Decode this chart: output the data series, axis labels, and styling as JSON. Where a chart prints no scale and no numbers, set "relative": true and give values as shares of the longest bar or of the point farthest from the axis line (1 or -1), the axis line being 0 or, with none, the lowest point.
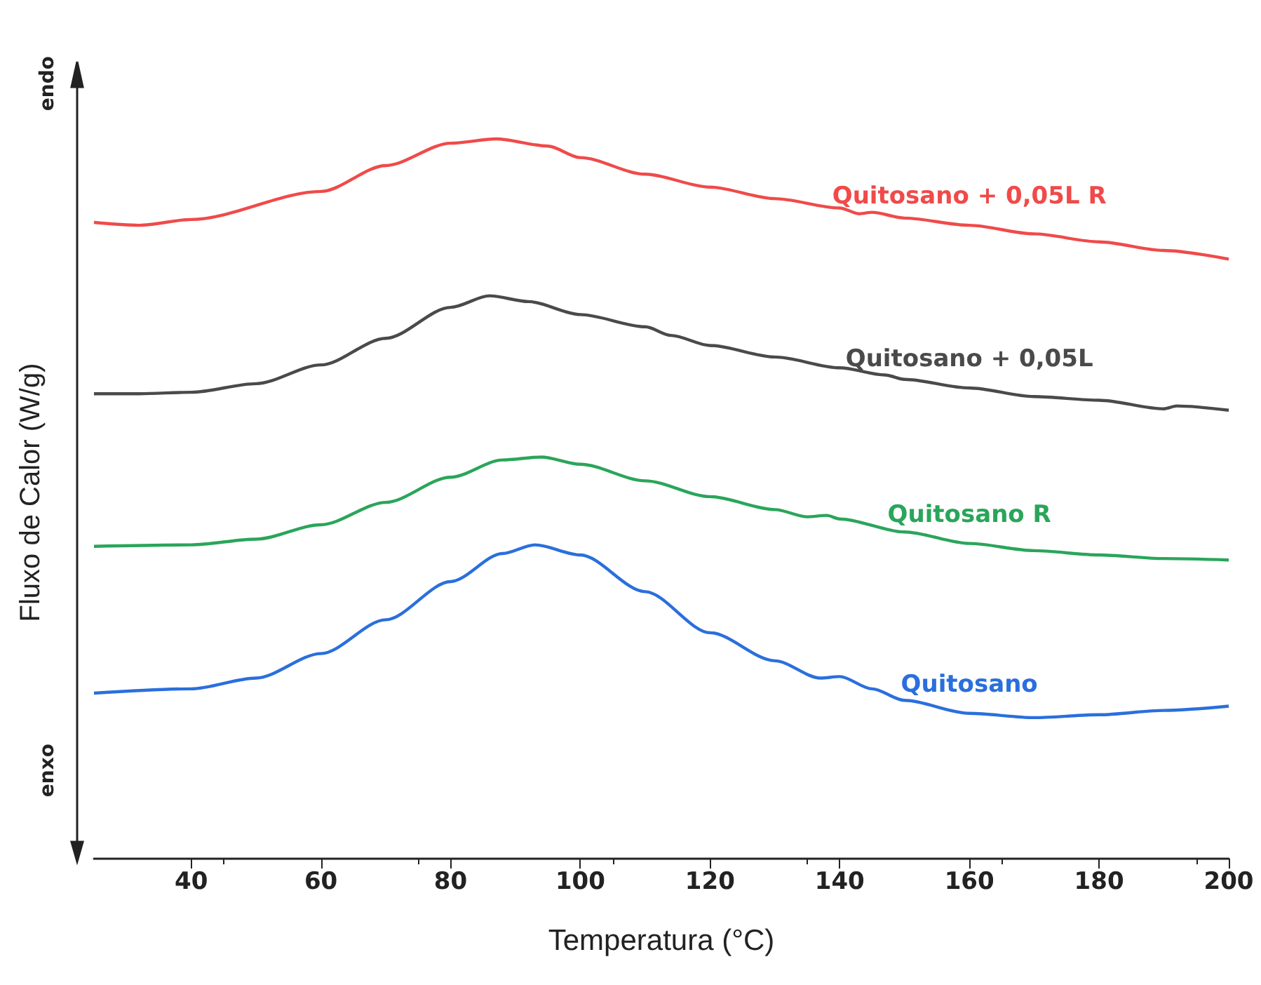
{
  "chart_data": {
    "type": "line",
    "relative": true,
    "xlabel": "Temperatura (°C)",
    "ylabel": "Fluxo de Calor (W/g)",
    "xlim": [
      25,
      200
    ],
    "xticks": [
      40,
      60,
      80,
      100,
      120,
      140,
      160,
      180,
      200
    ],
    "annotations": [
      "endo",
      "enxo"
    ],
    "legend": false,
    "grid": false,
    "marker": "none",
    "series": [
      {
        "name": "Quitosano + 0,05L R",
        "color": "#f04a4a",
        "x": [
          25,
          32,
          40,
          60,
          70,
          80,
          87,
          95,
          100,
          110,
          120,
          130,
          140,
          143,
          145,
          150,
          160,
          170,
          180,
          190,
          200
        ],
        "values": [
          0.884,
          0.88,
          0.888,
          0.927,
          0.963,
          0.994,
          1.0,
          0.99,
          0.974,
          0.951,
          0.933,
          0.917,
          0.904,
          0.896,
          0.898,
          0.89,
          0.88,
          0.868,
          0.857,
          0.845,
          0.833
        ]
      },
      {
        "name": "Quitosano + 0,05L",
        "color": "#4a4a4a",
        "x": [
          25,
          32,
          40,
          50,
          60,
          70,
          80,
          86,
          92,
          100,
          110,
          114,
          120,
          130,
          140,
          147,
          150,
          160,
          170,
          180,
          190,
          192,
          200
        ],
        "values": [
          0.646,
          0.646,
          0.648,
          0.66,
          0.686,
          0.723,
          0.766,
          0.782,
          0.774,
          0.756,
          0.739,
          0.727,
          0.713,
          0.697,
          0.682,
          0.672,
          0.666,
          0.654,
          0.642,
          0.637,
          0.625,
          0.629,
          0.623
        ]
      },
      {
        "name": "Quitosano R",
        "color": "#2aa55a",
        "x": [
          25,
          40,
          50,
          60,
          70,
          80,
          88,
          94,
          100,
          110,
          120,
          130,
          135,
          138,
          140,
          150,
          160,
          170,
          180,
          190,
          200
        ],
        "values": [
          0.434,
          0.436,
          0.444,
          0.464,
          0.495,
          0.53,
          0.554,
          0.558,
          0.548,
          0.525,
          0.503,
          0.485,
          0.475,
          0.477,
          0.472,
          0.454,
          0.438,
          0.428,
          0.422,
          0.417,
          0.415
        ]
      },
      {
        "name": "Quitosano",
        "color": "#2a6fdc",
        "x": [
          25,
          40,
          50,
          60,
          70,
          80,
          88,
          93,
          100,
          110,
          120,
          130,
          137,
          140,
          145,
          150,
          160,
          170,
          180,
          190,
          200
        ],
        "values": [
          0.23,
          0.236,
          0.251,
          0.285,
          0.332,
          0.385,
          0.424,
          0.436,
          0.422,
          0.371,
          0.314,
          0.275,
          0.251,
          0.253,
          0.236,
          0.22,
          0.202,
          0.196,
          0.2,
          0.206,
          0.212
        ]
      }
    ]
  }
}
